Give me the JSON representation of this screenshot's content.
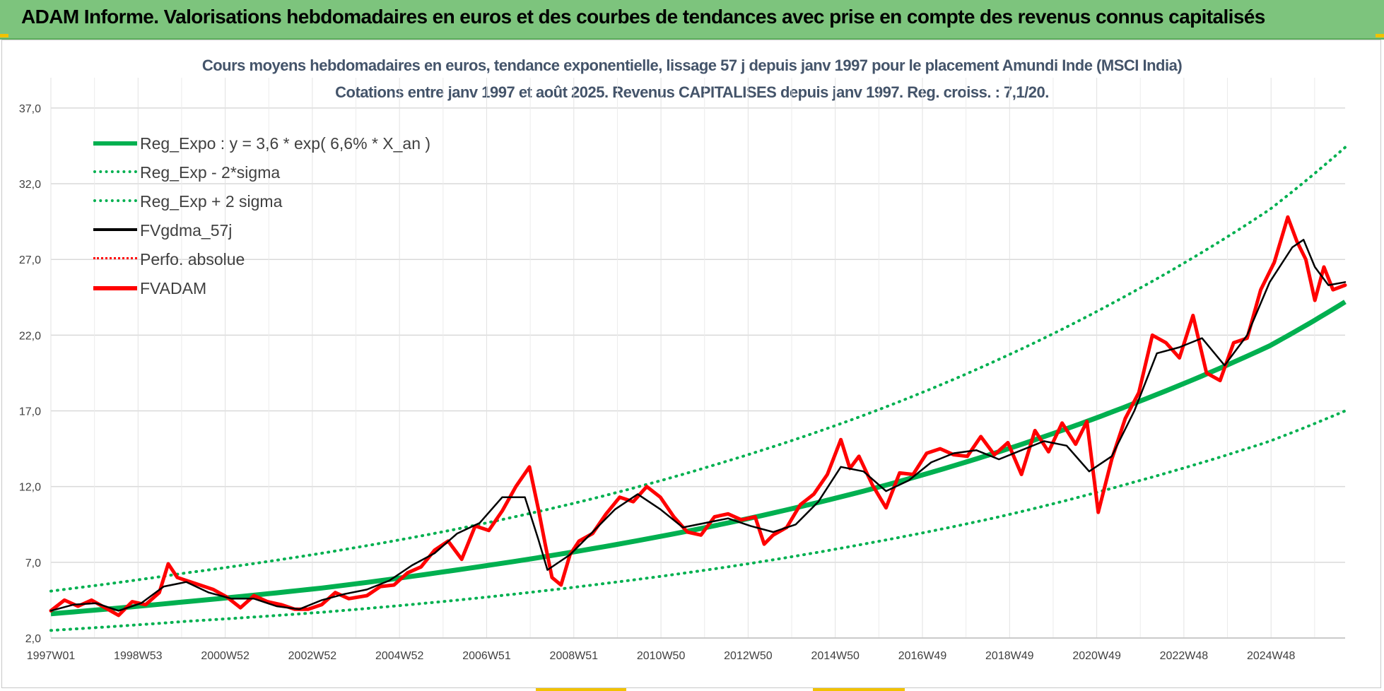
{
  "banner": {
    "title": "ADAM Informe. Valorisations hebdomadaires en euros et des courbes de tendances avec prise en compte des revenus connus capitalisés"
  },
  "chart_data": {
    "type": "line",
    "title": "Cours moyens hebdomadaires en euros, tendance exponentielle, lissage 57 j depuis janv 1997 pour le placement Amundi Inde (MSCI India)",
    "subtitle": "Cotations entre janv 1997 et août 2025. Revenus CAPITALISES depuis janv 1997. Reg. croiss. : 7,1/20.",
    "xlabel": "",
    "ylabel": "",
    "x_range": [
      1997.0,
      2025.67
    ],
    "ylim": [
      2.0,
      39.0
    ],
    "y_ticks": [
      "2,0",
      "7,0",
      "12,0",
      "17,0",
      "22,0",
      "27,0",
      "32,0",
      "37,0"
    ],
    "x_tick_labels": [
      "1997W01",
      "1998W53",
      "2000W52",
      "2002W52",
      "2004W52",
      "2006W51",
      "2008W51",
      "2010W50",
      "2012W50",
      "2014W50",
      "2016W49",
      "2018W49",
      "2020W49",
      "2022W48",
      "2024W48"
    ],
    "grid": true,
    "legend_position": "top-left",
    "colors": {
      "green": "#00b050",
      "black": "#000000",
      "red": "#ff0000"
    },
    "legend": [
      {
        "label": "Reg_Expo : y = 3,6 * exp( 6,6% *  X_an )",
        "style": "green-solid"
      },
      {
        "label": "Reg_Exp - 2*sigma",
        "style": "green-dotted"
      },
      {
        "label": "Reg_Exp + 2 sigma",
        "style": "green-dotted"
      },
      {
        "label": "FVgdma_57j",
        "style": "black-solid"
      },
      {
        "label": "Perfo. absolue",
        "style": "red-dotted"
      },
      {
        "label": "FVADAM",
        "style": "red-solid"
      }
    ],
    "series": [
      {
        "name": "Reg_Expo : y = 3,6 * exp( 6,6% *  X_an )",
        "x": [
          1997.0,
          2000.0,
          2003.0,
          2006.0,
          2009.0,
          2012.0,
          2015.0,
          2018.0,
          2021.0,
          2024.0,
          2025.67
        ],
        "values": [
          3.6,
          4.4,
          5.3,
          6.5,
          7.9,
          9.6,
          11.7,
          14.3,
          17.5,
          21.3,
          24.2
        ]
      },
      {
        "name": "Reg_Exp - 2*sigma",
        "x": [
          1997.0,
          2000.0,
          2003.0,
          2006.0,
          2009.0,
          2012.0,
          2015.0,
          2018.0,
          2021.0,
          2024.0,
          2025.67
        ],
        "values": [
          2.5,
          3.1,
          3.7,
          4.5,
          5.5,
          6.7,
          8.2,
          10.0,
          12.3,
          15.0,
          17.0
        ]
      },
      {
        "name": "Reg_Exp + 2 sigma",
        "x": [
          1997.0,
          2000.0,
          2003.0,
          2006.0,
          2009.0,
          2012.0,
          2015.0,
          2018.0,
          2021.0,
          2024.0,
          2025.67
        ],
        "values": [
          5.1,
          6.3,
          7.6,
          9.2,
          11.2,
          13.7,
          16.7,
          20.4,
          24.9,
          30.3,
          34.4
        ]
      },
      {
        "name": "FVgdma_57j",
        "x": [
          1997.0,
          1997.5,
          1998.0,
          1998.5,
          1999.0,
          1999.5,
          2000.0,
          2000.5,
          2001.0,
          2001.5,
          2002.0,
          2002.5,
          2003.0,
          2003.5,
          2004.0,
          2004.5,
          2005.0,
          2005.5,
          2006.0,
          2006.5,
          2007.0,
          2007.5,
          2007.8,
          2008.0,
          2008.5,
          2009.0,
          2009.5,
          2010.0,
          2010.5,
          2011.0,
          2011.5,
          2012.0,
          2012.5,
          2013.0,
          2013.5,
          2014.0,
          2014.5,
          2015.0,
          2015.5,
          2016.0,
          2016.5,
          2017.0,
          2017.5,
          2018.0,
          2018.5,
          2019.0,
          2019.5,
          2020.0,
          2020.5,
          2021.0,
          2021.5,
          2022.0,
          2022.5,
          2023.0,
          2023.5,
          2024.0,
          2024.5,
          2024.75,
          2025.0,
          2025.3,
          2025.67
        ],
        "values": [
          3.8,
          4.2,
          4.3,
          3.8,
          4.3,
          5.4,
          5.7,
          5.0,
          4.6,
          4.6,
          4.1,
          3.9,
          4.5,
          4.9,
          5.2,
          5.8,
          6.8,
          7.6,
          8.9,
          9.6,
          11.3,
          11.3,
          8.5,
          6.5,
          7.5,
          9.0,
          10.5,
          11.5,
          10.5,
          9.3,
          9.6,
          9.9,
          9.4,
          9.0,
          9.5,
          11.0,
          13.3,
          13.0,
          11.7,
          12.4,
          13.6,
          14.2,
          14.4,
          13.8,
          14.4,
          15.0,
          14.7,
          13.0,
          14.0,
          17.0,
          20.8,
          21.2,
          21.8,
          20.0,
          22.0,
          25.5,
          27.8,
          28.3,
          26.5,
          25.3,
          25.5
        ]
      },
      {
        "name": "FVADAM",
        "x": [
          1997.0,
          1997.3,
          1997.6,
          1997.9,
          1998.2,
          1998.5,
          1998.8,
          1999.1,
          1999.4,
          1999.6,
          1999.8,
          2000.0,
          2000.3,
          2000.6,
          2000.9,
          2001.2,
          2001.5,
          2001.8,
          2002.1,
          2002.4,
          2002.7,
          2003.0,
          2003.3,
          2003.6,
          2004.0,
          2004.3,
          2004.6,
          2004.9,
          2005.2,
          2005.5,
          2005.8,
          2006.1,
          2006.4,
          2006.7,
          2007.0,
          2007.3,
          2007.6,
          2007.8,
          2007.95,
          2008.1,
          2008.3,
          2008.5,
          2008.7,
          2009.0,
          2009.3,
          2009.6,
          2009.9,
          2010.2,
          2010.5,
          2010.8,
          2011.1,
          2011.4,
          2011.7,
          2012.0,
          2012.3,
          2012.6,
          2012.8,
          2013.0,
          2013.3,
          2013.6,
          2013.9,
          2014.2,
          2014.5,
          2014.7,
          2014.9,
          2015.2,
          2015.5,
          2015.8,
          2016.1,
          2016.4,
          2016.7,
          2017.0,
          2017.3,
          2017.6,
          2017.9,
          2018.2,
          2018.5,
          2018.8,
          2019.1,
          2019.4,
          2019.7,
          2019.95,
          2020.2,
          2020.5,
          2020.8,
          2021.1,
          2021.4,
          2021.7,
          2022.0,
          2022.3,
          2022.6,
          2022.9,
          2023.2,
          2023.5,
          2023.8,
          2024.1,
          2024.4,
          2024.6,
          2024.8,
          2025.0,
          2025.2,
          2025.4,
          2025.67
        ],
        "values": [
          3.8,
          4.5,
          4.1,
          4.5,
          4.0,
          3.5,
          4.4,
          4.2,
          5.0,
          6.9,
          6.0,
          5.8,
          5.5,
          5.2,
          4.7,
          4.0,
          4.8,
          4.4,
          4.2,
          3.9,
          3.9,
          4.2,
          5.0,
          4.6,
          4.8,
          5.4,
          5.5,
          6.3,
          6.7,
          7.8,
          8.4,
          7.2,
          9.4,
          9.1,
          10.4,
          12.0,
          13.3,
          10.5,
          8.2,
          6.0,
          5.5,
          7.5,
          8.4,
          8.9,
          10.2,
          11.3,
          11.0,
          12.0,
          11.3,
          10.0,
          9.0,
          8.8,
          10.0,
          10.2,
          9.8,
          10.0,
          8.2,
          8.8,
          9.3,
          10.8,
          11.5,
          12.8,
          15.1,
          13.2,
          14.0,
          12.1,
          10.6,
          12.9,
          12.8,
          14.2,
          14.5,
          14.1,
          14.0,
          15.3,
          14.1,
          14.9,
          12.8,
          15.7,
          14.3,
          16.2,
          14.8,
          16.3,
          10.3,
          13.8,
          16.5,
          18.2,
          22.0,
          21.5,
          20.5,
          23.3,
          19.5,
          19.0,
          21.5,
          21.8,
          25.0,
          26.8,
          29.8,
          28.2,
          27.0,
          24.3,
          26.5,
          25.0,
          25.3
        ]
      }
    ]
  }
}
